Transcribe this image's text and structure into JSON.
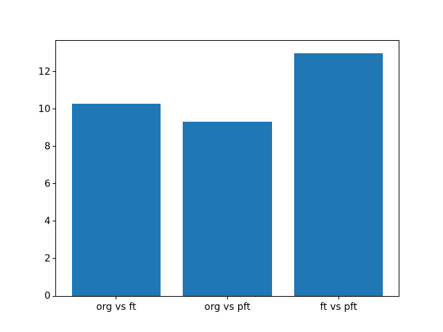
{
  "chart_data": {
    "type": "bar",
    "categories": [
      "org vs ft",
      "org vs pft",
      "ft vs pft"
    ],
    "values": [
      10.27,
      9.31,
      13.0
    ],
    "yticks": [
      0,
      2,
      4,
      6,
      8,
      10,
      12
    ],
    "ytick_labels": [
      "0",
      "2",
      "4",
      "6",
      "8",
      "10",
      "12"
    ],
    "ylim": [
      0,
      13.65
    ],
    "xlim": [
      -0.54,
      2.54
    ],
    "bar_width": 0.8,
    "bar_color": "#1f77b4",
    "spine_color": "#000000",
    "tick_label_color": "#000000",
    "background_color": "#ffffff",
    "grid": false,
    "legend": null
  }
}
